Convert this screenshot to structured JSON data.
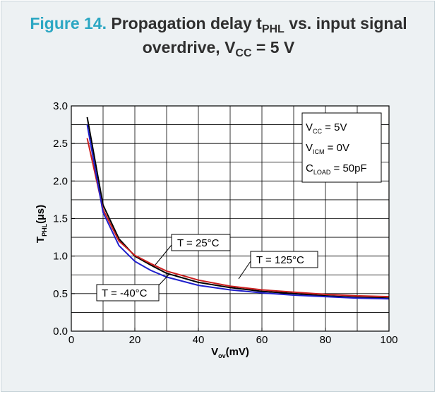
{
  "figure": {
    "label": "Figure 14.",
    "title_part1": "Propagation delay t",
    "title_sub1": "PHL",
    "title_part2": " vs. input signal",
    "title_line2_part1": "overdrive, V",
    "title_line2_sub": "CC",
    "title_line2_part2": " = 5 V",
    "label_color": "#2ca7c3"
  },
  "chart_data": {
    "type": "line",
    "xlabel": "V",
    "xlabel_sub": "ov",
    "xlabel_unit": "(mV)",
    "ylabel": "T",
    "ylabel_sub": "PHL",
    "ylabel_unit": "(µs)",
    "xlim": [
      0,
      100
    ],
    "ylim": [
      0,
      3.0
    ],
    "x_ticks": [
      0,
      20,
      40,
      60,
      80,
      100
    ],
    "x_tick_labels": [
      "0",
      "20",
      "40",
      "60",
      "80",
      "100"
    ],
    "y_ticks": [
      0,
      0.5,
      1.0,
      1.5,
      2.0,
      2.5,
      3.0
    ],
    "y_tick_labels": [
      "0.0",
      "0.5",
      "1.0",
      "1.5",
      "2.0",
      "2.5",
      "3.0"
    ],
    "grid": true,
    "conditions": {
      "vcc": {
        "main": "V",
        "sub": "CC",
        "rest": " = 5V"
      },
      "vicm": {
        "main": "V",
        "sub": "ICM",
        "rest": " = 0V"
      },
      "cload": {
        "main": "C",
        "sub": "LOAD",
        "rest": " = 50pF"
      }
    },
    "annotations": [
      "T = 25°C",
      "T = 125°C",
      "T = -40°C"
    ],
    "series": [
      {
        "color": "#000000",
        "x": [
          5,
          10,
          15,
          20,
          25,
          30,
          40,
          50,
          60,
          70,
          80,
          90,
          100
        ],
        "y": [
          2.85,
          1.68,
          1.23,
          1.0,
          0.88,
          0.77,
          0.65,
          0.58,
          0.53,
          0.5,
          0.47,
          0.45,
          0.44
        ]
      },
      {
        "color": "#cc1f1f",
        "x": [
          5,
          10,
          15,
          20,
          25,
          30,
          40,
          50,
          60,
          70,
          80,
          90,
          100
        ],
        "y": [
          2.57,
          1.62,
          1.2,
          1.01,
          0.9,
          0.8,
          0.68,
          0.6,
          0.55,
          0.52,
          0.49,
          0.47,
          0.46
        ]
      },
      {
        "color": "#2020cc",
        "x": [
          5,
          10,
          15,
          20,
          25,
          30,
          40,
          50,
          60,
          70,
          80,
          90,
          100
        ],
        "y": [
          2.75,
          1.58,
          1.14,
          0.93,
          0.81,
          0.72,
          0.61,
          0.55,
          0.51,
          0.48,
          0.46,
          0.44,
          0.43
        ]
      }
    ]
  }
}
